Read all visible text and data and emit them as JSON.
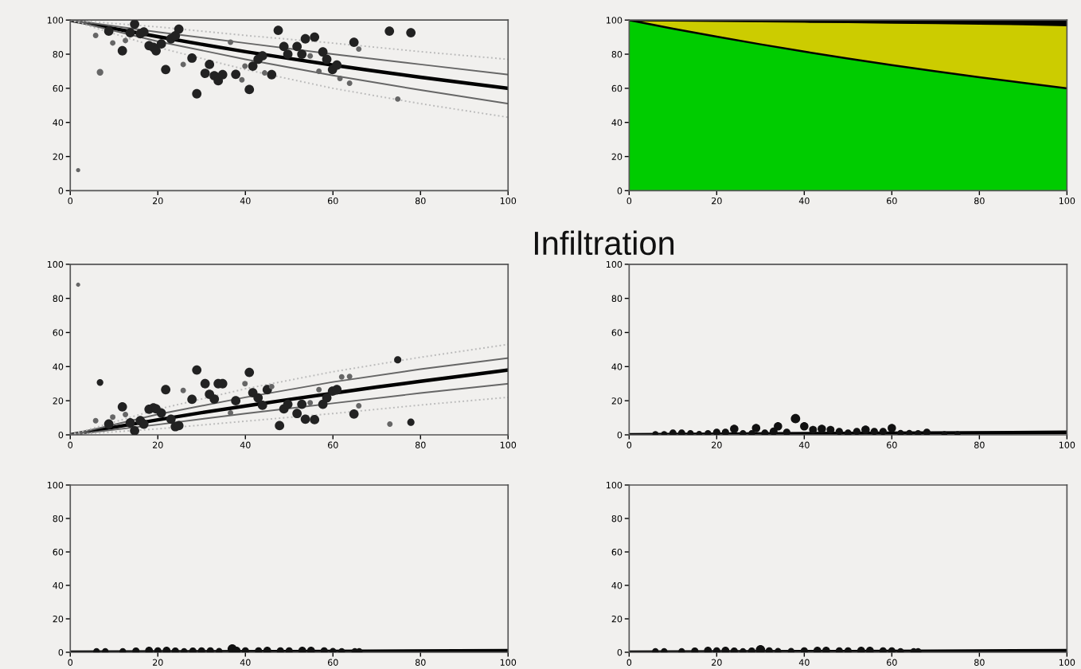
{
  "chart_data": [
    {
      "type": "scatter",
      "xlim": [
        0,
        100
      ],
      "ylim": [
        0,
        100
      ],
      "xticks": [
        0,
        20,
        40,
        60,
        80,
        100
      ],
      "yticks": [
        0,
        20,
        40,
        60,
        80,
        100
      ],
      "grid": false,
      "series": [
        {
          "type": "bubble",
          "marker": "circle",
          "color": "#222222",
          "x": [
            8.8,
            11.9,
            14.7,
            13.7,
            16,
            16.8,
            18,
            19,
            19.6,
            20.8,
            21.8,
            23,
            24,
            24.8,
            27.8,
            28.9,
            30.8,
            31.8,
            32.9,
            33.8,
            34.8,
            37.8,
            40.9,
            41.7,
            42.9,
            43.9,
            46,
            47.5,
            48.8,
            49.7,
            51.8,
            52.9,
            53.7,
            55.8,
            57.7,
            58.6,
            59.9,
            60.9,
            64.8,
            72.9,
            77.8
          ],
          "values": [
            93.5,
            82,
            97.6,
            92.6,
            92,
            93,
            85,
            84,
            82,
            86,
            71,
            89,
            90.8,
            94.7,
            77.7,
            56.8,
            68.8,
            74,
            67.4,
            64.4,
            68,
            68.2,
            59.3,
            73,
            77,
            79,
            68,
            94,
            84.5,
            80,
            84.5,
            80,
            89,
            90,
            81.3,
            77,
            71,
            73.6,
            87,
            93.5,
            92.6
          ],
          "sizes": [
            1,
            1,
            1,
            1,
            1,
            1,
            1,
            1,
            1,
            1,
            1,
            1,
            1,
            1,
            1,
            1,
            1,
            1,
            1,
            1,
            1,
            1,
            1,
            1,
            1,
            1,
            1,
            1,
            1,
            1,
            1,
            1,
            1,
            1,
            1,
            1,
            1,
            1,
            1,
            1,
            1
          ]
        },
        {
          "type": "bubble",
          "marker": "circle",
          "color": "#666666",
          "x": [
            5.8,
            6.8,
            9.7,
            12.6,
            36.6,
            39.2,
            39.9,
            44.4,
            54.8,
            56.8,
            61.6,
            63.8,
            65.9,
            74.8,
            1.8,
            25.8
          ],
          "values": [
            91,
            69.4,
            86.6,
            88,
            87,
            65,
            73,
            69,
            79,
            70,
            65.8,
            63,
            83,
            53.7,
            12,
            74
          ],
          "sizes": [
            0.35,
            0.5,
            0.35,
            0.35,
            0.35,
            0.35,
            0.35,
            0.35,
            0.35,
            0.35,
            0.35,
            0.35,
            0.35,
            0.35,
            0.2,
            0.35
          ]
        },
        {
          "type": "line",
          "color": "#000000",
          "line_style": "solid",
          "x": [
            0,
            10,
            20,
            30,
            40,
            50,
            60,
            70,
            80,
            90,
            100
          ],
          "values": [
            100,
            95,
            90.3,
            85.8,
            81.5,
            77.5,
            73.6,
            70,
            66.5,
            63.2,
            60
          ]
        },
        {
          "type": "line",
          "color": "#666666",
          "line_style": "solid",
          "x": [
            0,
            20,
            40,
            60,
            80,
            100
          ],
          "values": [
            100,
            93,
            86.5,
            80,
            74,
            68
          ]
        },
        {
          "type": "line",
          "color": "#666666",
          "line_style": "solid",
          "x": [
            0,
            20,
            40,
            60,
            80,
            100
          ],
          "values": [
            100,
            87.5,
            77,
            67.5,
            59,
            51
          ]
        },
        {
          "type": "line",
          "color": "#bbbbbb",
          "line_style": "dotted",
          "x": [
            0,
            20,
            40,
            60,
            80,
            100
          ],
          "values": [
            100,
            96,
            91,
            86.5,
            81.5,
            77
          ]
        },
        {
          "type": "line",
          "color": "#bbbbbb",
          "line_style": "dotted",
          "x": [
            0,
            20,
            40,
            60,
            80,
            100
          ],
          "values": [
            100,
            84,
            71,
            60,
            51,
            43
          ]
        }
      ]
    },
    {
      "type": "area",
      "stacked": true,
      "xlim": [
        0,
        100
      ],
      "ylim": [
        0,
        100
      ],
      "xticks": [
        0,
        20,
        40,
        60,
        80,
        100
      ],
      "yticks": [
        0,
        20,
        40,
        60,
        80,
        100
      ],
      "grid": false,
      "x": [
        0,
        10,
        20,
        30,
        40,
        50,
        60,
        70,
        80,
        90,
        100
      ],
      "series": [
        {
          "color": "#00cc00",
          "values": [
            100,
            95,
            90.3,
            85.8,
            81.5,
            77.5,
            73.6,
            70,
            66.5,
            63.2,
            60
          ]
        },
        {
          "color": "#cccc00",
          "values": [
            0,
            4.8,
            9.2,
            13.5,
            17.5,
            21.3,
            24.9,
            28.2,
            31.4,
            34.3,
            37
          ]
        },
        {
          "color": "#000000",
          "values": [
            0,
            0.2,
            0.5,
            0.7,
            1,
            1.2,
            1.5,
            1.8,
            2.1,
            2.5,
            3
          ]
        }
      ]
    },
    {
      "type": "scatter",
      "xlim": [
        0,
        100
      ],
      "ylim": [
        0,
        100
      ],
      "xticks": [
        0,
        20,
        40,
        60,
        80,
        100
      ],
      "yticks": [
        0,
        20,
        40,
        60,
        80,
        100
      ],
      "grid": false,
      "series": [
        {
          "type": "bubble",
          "marker": "circle",
          "color": "#222222",
          "x": [
            6.8,
            8.8,
            11.9,
            13.7,
            14.7,
            16,
            16.8,
            18,
            19,
            19.6,
            20.8,
            21.8,
            23,
            24,
            24.8,
            27.8,
            28.9,
            30.8,
            31.8,
            32.9,
            33.8,
            34.8,
            37.8,
            40.9,
            41.7,
            42.9,
            43.9,
            45,
            47.8,
            48.8,
            49.7,
            51.8,
            52.9,
            53.7,
            55.8,
            57.7,
            58.6,
            59.9,
            60.9,
            64.8,
            74.8,
            77.8
          ],
          "values": [
            30.7,
            6.3,
            16.4,
            7,
            2.4,
            8.3,
            6.3,
            15,
            15.8,
            15.2,
            12.8,
            26.5,
            9.2,
            4.8,
            5.4,
            20.8,
            38,
            30,
            23.8,
            21,
            30,
            30,
            20,
            36.6,
            24.7,
            21.7,
            17.3,
            26.5,
            5.4,
            15.2,
            17.9,
            12.5,
            17.9,
            9.2,
            8.9,
            17.9,
            21.7,
            25.6,
            26.5,
            12.2,
            44,
            7.4
          ],
          "sizes": [
            0.5,
            1,
            1,
            1,
            1,
            1,
            1,
            1,
            1,
            1,
            1,
            1,
            1,
            1,
            1,
            1,
            1,
            1,
            1,
            1,
            1,
            1,
            1,
            1,
            1,
            1,
            1,
            1,
            1,
            1,
            1,
            1,
            1,
            1,
            1,
            1,
            1,
            1,
            1,
            1,
            0.6,
            0.6
          ]
        },
        {
          "type": "bubble",
          "marker": "circle",
          "color": "#666666",
          "x": [
            1.8,
            5.8,
            9.7,
            12.6,
            36.6,
            39.9,
            46,
            54.8,
            56.8,
            62,
            63.8,
            65.9,
            73,
            25.8
          ],
          "values": [
            88,
            8.3,
            10.4,
            11.9,
            12.8,
            30,
            28.3,
            18.8,
            26.5,
            34,
            34.2,
            17,
            6.3,
            26
          ],
          "sizes": [
            0.2,
            0.35,
            0.35,
            0.35,
            0.35,
            0.35,
            0.35,
            0.35,
            0.35,
            0.35,
            0.35,
            0.35,
            0.35,
            0.35
          ]
        },
        {
          "type": "line",
          "color": "#000000",
          "line_style": "solid",
          "x": [
            0,
            10,
            20,
            30,
            40,
            50,
            60,
            70,
            80,
            90,
            100
          ],
          "values": [
            0,
            4.5,
            8.8,
            13,
            16.9,
            20.7,
            24.4,
            28,
            31.4,
            34.7,
            38
          ]
        },
        {
          "type": "line",
          "color": "#666666",
          "line_style": "solid",
          "x": [
            0,
            20,
            40,
            60,
            80,
            100
          ],
          "values": [
            0,
            12,
            22,
            31,
            38.5,
            45
          ]
        },
        {
          "type": "line",
          "color": "#666666",
          "line_style": "solid",
          "x": [
            0,
            20,
            40,
            60,
            80,
            100
          ],
          "values": [
            0,
            6,
            12.5,
            18.5,
            24.5,
            30
          ]
        },
        {
          "type": "line",
          "color": "#bbbbbb",
          "line_style": "dotted",
          "x": [
            0,
            20,
            40,
            60,
            80,
            100
          ],
          "values": [
            0,
            15,
            27,
            37,
            45.5,
            53
          ]
        },
        {
          "type": "line",
          "color": "#bbbbbb",
          "line_style": "dotted",
          "x": [
            0,
            20,
            40,
            60,
            80,
            100
          ],
          "values": [
            0,
            3.5,
            8,
            12.5,
            17.5,
            22
          ]
        }
      ]
    },
    {
      "type": "scatter",
      "title": "Infiltration",
      "xlim": [
        0,
        100
      ],
      "ylim": [
        0,
        100
      ],
      "xticks": [
        0,
        20,
        40,
        60,
        80,
        100
      ],
      "yticks": [
        0,
        20,
        40,
        60,
        80,
        100
      ],
      "grid": false,
      "series": [
        {
          "type": "bubble",
          "marker": "circle",
          "color": "#111111",
          "x": [
            6,
            8,
            10,
            12,
            14,
            16,
            18,
            20,
            22,
            24,
            26,
            28,
            29,
            31,
            33,
            34,
            36,
            38,
            40,
            42,
            44,
            46,
            48,
            50,
            52,
            54,
            56,
            58,
            60,
            62,
            64,
            66,
            68,
            72,
            75
          ],
          "values": [
            0.5,
            0.5,
            1,
            1,
            0.8,
            0.6,
            0.8,
            1.5,
            1.5,
            3.5,
            0.8,
            0.8,
            4,
            1,
            2,
            5,
            1.5,
            9.5,
            5,
            3,
            3.5,
            3,
            2,
            1,
            2,
            3,
            2,
            2,
            4,
            1,
            1,
            0.8,
            1.5,
            0.5,
            0.5
          ],
          "sizes": [
            0.4,
            0.4,
            0.6,
            0.6,
            0.5,
            0.4,
            0.5,
            0.6,
            0.6,
            0.8,
            0.5,
            0.5,
            0.8,
            0.6,
            0.7,
            0.8,
            0.6,
            1,
            0.8,
            0.7,
            0.8,
            0.7,
            0.6,
            0.6,
            0.6,
            0.8,
            0.6,
            0.6,
            0.8,
            0.5,
            0.5,
            0.5,
            0.6,
            0.4,
            0.4
          ]
        },
        {
          "type": "line",
          "color": "#000000",
          "line_style": "solid",
          "x": [
            0,
            50,
            100
          ],
          "values": [
            0,
            0.8,
            1.5
          ]
        }
      ]
    },
    {
      "type": "scatter",
      "xlim": [
        0,
        100
      ],
      "ylim": [
        0,
        100
      ],
      "xticks": [
        0,
        20,
        40,
        60,
        80,
        100
      ],
      "yticks": [
        0,
        20,
        40,
        60,
        80,
        100
      ],
      "grid": false,
      "series": [
        {
          "type": "bubble",
          "marker": "circle",
          "color": "#111111",
          "x": [
            6,
            8,
            12,
            15,
            18,
            20,
            22,
            24,
            26,
            28,
            30,
            32,
            34,
            37,
            38,
            40,
            43,
            45,
            48,
            50,
            53,
            55,
            58,
            60,
            62,
            65,
            66
          ],
          "values": [
            0.5,
            0.5,
            0.5,
            0.7,
            1,
            0.8,
            1,
            0.7,
            0.5,
            0.7,
            0.8,
            0.8,
            0.6,
            2,
            1,
            0.8,
            0.8,
            1,
            0.8,
            0.8,
            1,
            1,
            0.8,
            0.6,
            0.5,
            0.5,
            0.5
          ],
          "sizes": [
            0.5,
            0.5,
            0.5,
            0.6,
            0.7,
            0.6,
            0.7,
            0.6,
            0.5,
            0.6,
            0.6,
            0.6,
            0.5,
            1,
            0.7,
            0.6,
            0.6,
            0.7,
            0.6,
            0.6,
            0.7,
            0.7,
            0.6,
            0.5,
            0.5,
            0.5,
            0.5
          ]
        },
        {
          "type": "line",
          "color": "#000000",
          "line_style": "solid",
          "x": [
            0,
            50,
            100
          ],
          "values": [
            0,
            0.4,
            1
          ]
        }
      ]
    },
    {
      "type": "scatter",
      "xlim": [
        0,
        100
      ],
      "ylim": [
        0,
        100
      ],
      "xticks": [
        0,
        20,
        40,
        60,
        80,
        100
      ],
      "yticks": [
        0,
        20,
        40,
        60,
        80,
        100
      ],
      "grid": false,
      "series": [
        {
          "type": "bubble",
          "marker": "circle",
          "color": "#111111",
          "x": [
            6,
            8,
            12,
            15,
            18,
            20,
            22,
            24,
            26,
            28,
            30,
            32,
            34,
            37,
            40,
            43,
            45,
            48,
            50,
            53,
            55,
            58,
            60,
            62,
            65,
            66
          ],
          "values": [
            0.5,
            0.5,
            0.5,
            0.7,
            1,
            0.8,
            1,
            0.7,
            0.5,
            0.7,
            1.5,
            0.8,
            0.6,
            0.6,
            0.8,
            1,
            1,
            0.8,
            0.8,
            1,
            1,
            0.8,
            0.8,
            0.5,
            0.5,
            0.5
          ],
          "sizes": [
            0.5,
            0.5,
            0.5,
            0.6,
            0.7,
            0.6,
            0.7,
            0.6,
            0.5,
            0.6,
            1,
            0.6,
            0.5,
            0.5,
            0.6,
            0.7,
            0.7,
            0.6,
            0.6,
            0.7,
            0.7,
            0.6,
            0.6,
            0.5,
            0.5,
            0.5
          ]
        },
        {
          "type": "line",
          "color": "#000000",
          "line_style": "solid",
          "x": [
            0,
            50,
            100
          ],
          "values": [
            0,
            0.4,
            1
          ]
        }
      ]
    }
  ]
}
